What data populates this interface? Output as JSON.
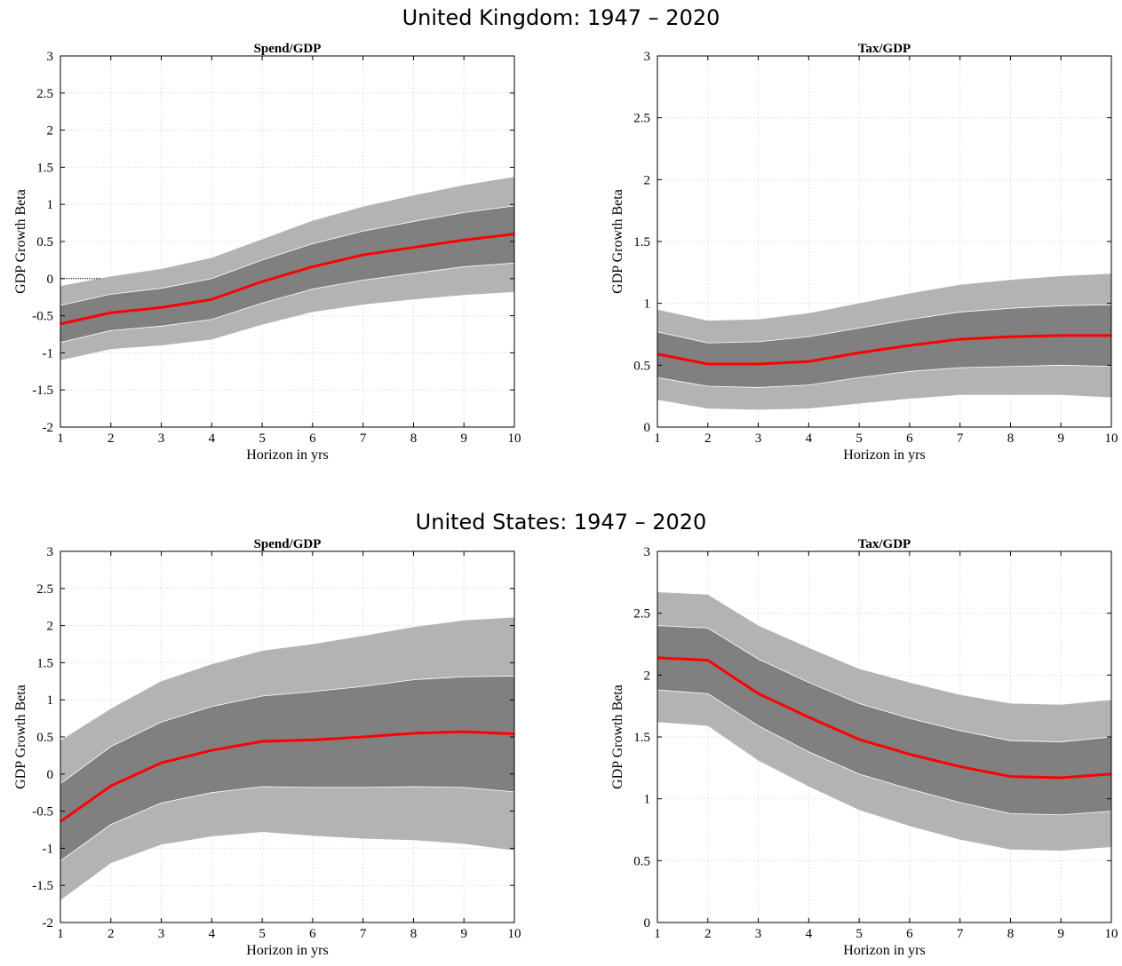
{
  "figure": {
    "groups": [
      {
        "title": "United Kingdom: 1947 – 2020"
      },
      {
        "title": "United States: 1947 – 2020"
      }
    ]
  },
  "colors": {
    "outer_band": "#b3b3b3",
    "inner_band": "#808080",
    "line": "#ff0000",
    "grid": "#d9d9d9"
  },
  "chart_data": [
    {
      "type": "area",
      "group": "United Kingdom: 1947 – 2020",
      "title": "Spend/GDP",
      "xlabel": "Horizon in yrs",
      "ylabel": "GDP Growth Beta",
      "xlim": [
        1,
        10
      ],
      "ylim": [
        -2,
        3
      ],
      "yticks": [
        -2,
        -1.5,
        -1,
        -0.5,
        0,
        0.5,
        1,
        1.5,
        2,
        2.5,
        3
      ],
      "yticklabels": [
        "-2",
        "-1.5",
        "-1",
        "-0.5",
        "0",
        "0.5",
        "1",
        "1.5",
        "2",
        "2.5",
        "3"
      ],
      "x": [
        1,
        2,
        3,
        4,
        5,
        6,
        7,
        8,
        9,
        10
      ],
      "grid": true,
      "zero_line": true,
      "outer_lower": [
        -1.1,
        -0.95,
        -0.9,
        -0.82,
        -0.62,
        -0.45,
        -0.35,
        -0.28,
        -0.22,
        -0.18
      ],
      "outer_upper": [
        -0.1,
        0.03,
        0.13,
        0.28,
        0.53,
        0.78,
        0.97,
        1.12,
        1.26,
        1.37
      ],
      "inner_lower": [
        -0.86,
        -0.7,
        -0.64,
        -0.55,
        -0.33,
        -0.14,
        -0.02,
        0.07,
        0.16,
        0.21
      ],
      "inner_upper": [
        -0.36,
        -0.21,
        -0.13,
        0.0,
        0.25,
        0.47,
        0.64,
        0.77,
        0.89,
        0.98
      ],
      "values": [
        -0.61,
        -0.46,
        -0.39,
        -0.28,
        -0.04,
        0.16,
        0.32,
        0.42,
        0.52,
        0.6
      ]
    },
    {
      "type": "area",
      "group": "United Kingdom: 1947 – 2020",
      "title": "Tax/GDP",
      "xlabel": "Horizon in yrs",
      "ylabel": "GDP Growth Beta",
      "xlim": [
        1,
        10
      ],
      "ylim": [
        0,
        3
      ],
      "yticks": [
        0,
        0.5,
        1,
        1.5,
        2,
        2.5,
        3
      ],
      "yticklabels": [
        "0",
        "0.5",
        "1",
        "1.5",
        "2",
        "2.5",
        "3"
      ],
      "x": [
        1,
        2,
        3,
        4,
        5,
        6,
        7,
        8,
        9,
        10
      ],
      "grid": true,
      "zero_line": false,
      "outer_lower": [
        0.22,
        0.15,
        0.14,
        0.15,
        0.19,
        0.23,
        0.26,
        0.26,
        0.26,
        0.24
      ],
      "outer_upper": [
        0.95,
        0.86,
        0.87,
        0.92,
        1.0,
        1.08,
        1.15,
        1.19,
        1.22,
        1.24
      ],
      "inner_lower": [
        0.4,
        0.33,
        0.32,
        0.34,
        0.4,
        0.45,
        0.48,
        0.49,
        0.5,
        0.49
      ],
      "inner_upper": [
        0.77,
        0.68,
        0.69,
        0.73,
        0.8,
        0.87,
        0.93,
        0.96,
        0.98,
        0.99
      ],
      "values": [
        0.59,
        0.51,
        0.51,
        0.53,
        0.6,
        0.66,
        0.71,
        0.73,
        0.74,
        0.74
      ]
    },
    {
      "type": "area",
      "group": "United States: 1947 – 2020",
      "title": "Spend/GDP",
      "xlabel": "Horizon in yrs",
      "ylabel": "GDP Growth Beta",
      "xlim": [
        1,
        10
      ],
      "ylim": [
        -2,
        3
      ],
      "yticks": [
        -2,
        -1.5,
        -1,
        -0.5,
        0,
        0.5,
        1,
        1.5,
        2,
        2.5,
        3
      ],
      "yticklabels": [
        "-2",
        "-1.5",
        "-1",
        "-0.5",
        "0",
        "0.5",
        "1",
        "1.5",
        "2",
        "2.5",
        "3"
      ],
      "x": [
        1,
        2,
        3,
        4,
        5,
        6,
        7,
        8,
        9,
        10
      ],
      "grid": true,
      "zero_line": false,
      "outer_lower": [
        -1.7,
        -1.2,
        -0.95,
        -0.84,
        -0.78,
        -0.83,
        -0.87,
        -0.89,
        -0.94,
        -1.03
      ],
      "outer_upper": [
        0.45,
        0.88,
        1.25,
        1.48,
        1.66,
        1.75,
        1.86,
        1.98,
        2.07,
        2.11
      ],
      "inner_lower": [
        -1.17,
        -0.68,
        -0.39,
        -0.25,
        -0.17,
        -0.18,
        -0.18,
        -0.17,
        -0.18,
        -0.24
      ],
      "inner_upper": [
        -0.13,
        0.37,
        0.7,
        0.91,
        1.05,
        1.11,
        1.18,
        1.27,
        1.31,
        1.32
      ],
      "values": [
        -0.64,
        -0.16,
        0.15,
        0.32,
        0.44,
        0.46,
        0.5,
        0.55,
        0.57,
        0.54
      ]
    },
    {
      "type": "area",
      "group": "United States: 1947 – 2020",
      "title": "Tax/GDP",
      "xlabel": "Horizon in yrs",
      "ylabel": "GDP Growth Beta",
      "xlim": [
        1,
        10
      ],
      "ylim": [
        0,
        3
      ],
      "yticks": [
        0,
        0.5,
        1,
        1.5,
        2,
        2.5,
        3
      ],
      "yticklabels": [
        "0",
        "0.5",
        "1",
        "1.5",
        "2",
        "2.5",
        "3"
      ],
      "x": [
        1,
        2,
        3,
        4,
        5,
        6,
        7,
        8,
        9,
        10
      ],
      "grid": true,
      "zero_line": false,
      "outer_lower": [
        1.62,
        1.59,
        1.31,
        1.1,
        0.91,
        0.78,
        0.67,
        0.59,
        0.58,
        0.61
      ],
      "outer_upper": [
        2.67,
        2.65,
        2.4,
        2.22,
        2.05,
        1.94,
        1.84,
        1.77,
        1.76,
        1.8
      ],
      "inner_lower": [
        1.88,
        1.85,
        1.59,
        1.38,
        1.2,
        1.08,
        0.97,
        0.88,
        0.87,
        0.9
      ],
      "inner_upper": [
        2.4,
        2.38,
        2.13,
        1.94,
        1.77,
        1.65,
        1.55,
        1.47,
        1.46,
        1.5
      ],
      "values": [
        2.14,
        2.12,
        1.85,
        1.66,
        1.48,
        1.36,
        1.26,
        1.18,
        1.17,
        1.2
      ]
    }
  ]
}
